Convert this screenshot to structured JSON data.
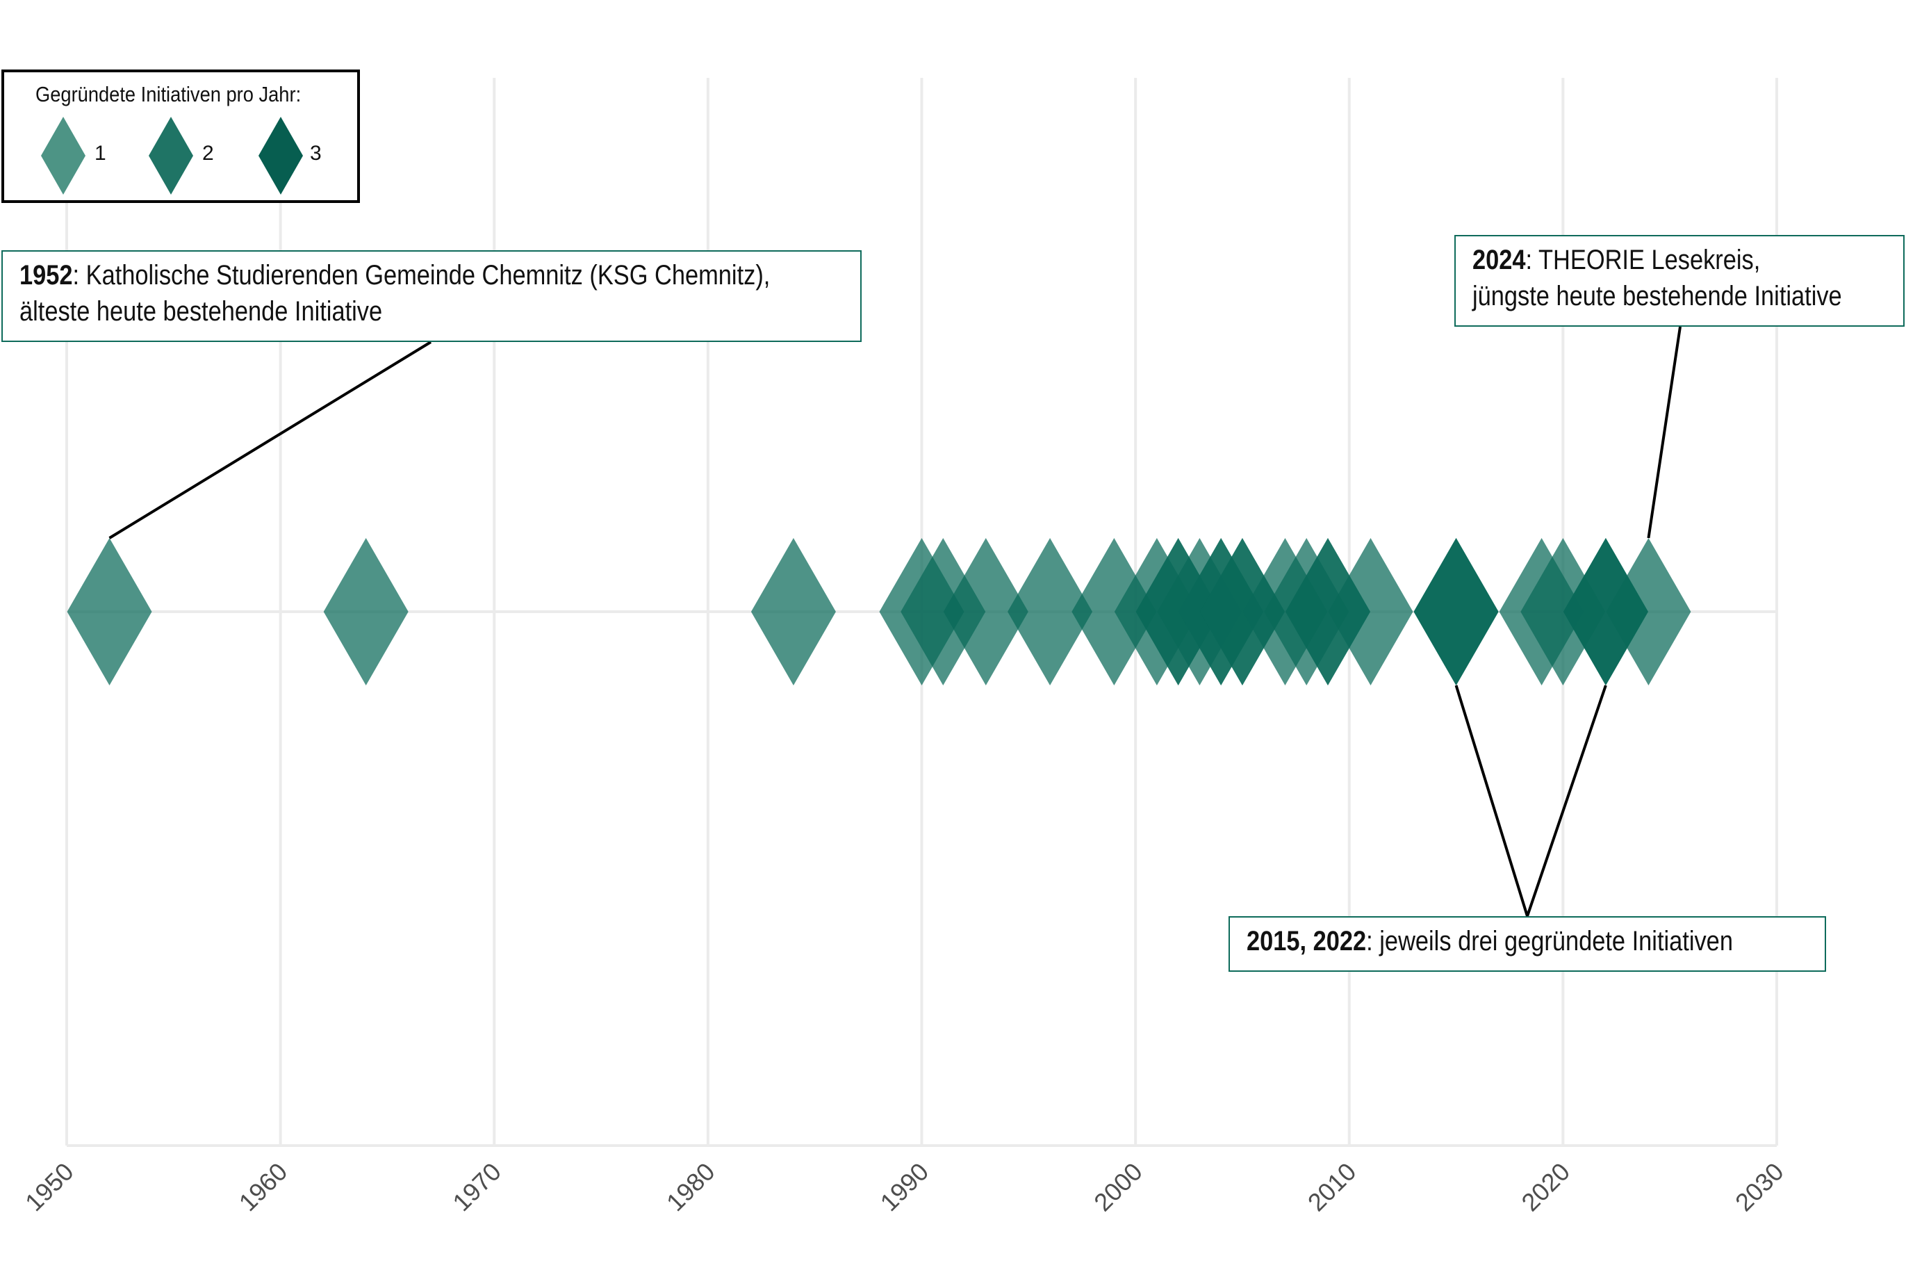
{
  "legend": {
    "title": "Gegründete Initiativen pro Jahr:",
    "items": [
      {
        "label": "1",
        "color": "#4d9485"
      },
      {
        "label": "2",
        "color": "#1f7465"
      },
      {
        "label": "3",
        "color": "#075e50"
      }
    ]
  },
  "annotations": {
    "a1952": {
      "year": "1952",
      "line1": ": Katholische Studierenden Gemeinde Chemnitz (KSG Chemnitz),",
      "line2": "älteste heute bestehende Initiative"
    },
    "a2024": {
      "year": "2024",
      "line1": ": THEORIE Lesekreis,",
      "line2": "jüngste heute bestehende Initiative"
    },
    "a2015": {
      "year": "2015, 2022",
      "line1": ": jeweils drei gegründete Initiativen"
    }
  },
  "chart_data": {
    "type": "scatter",
    "x_axis": {
      "ticks": [
        1950,
        1960,
        1970,
        1980,
        1990,
        2000,
        2010,
        2020,
        2030
      ],
      "range": [
        1950,
        2030
      ]
    },
    "grid": true,
    "marker": "diamond",
    "marker_color": "#0a6a59",
    "points": [
      1952,
      1964,
      1984,
      1990,
      1991,
      1993,
      1996,
      1999,
      2001,
      2002,
      2003,
      2004,
      2005,
      2007,
      2008,
      2009,
      2011,
      2015,
      2019,
      2020,
      2022,
      2024
    ],
    "counts_per_year": {
      "1952": 1,
      "1964": 1,
      "1984": 1,
      "1990": 1,
      "1991": 1,
      "1993": 1,
      "1996": 1,
      "1999": 1,
      "2001": 1,
      "2002": 2,
      "2003": 1,
      "2004": 2,
      "2005": 2,
      "2007": 1,
      "2008": 1,
      "2009": 2,
      "2011": 1,
      "2015": 3,
      "2019": 1,
      "2020": 1,
      "2022": 3,
      "2024": 1
    }
  }
}
